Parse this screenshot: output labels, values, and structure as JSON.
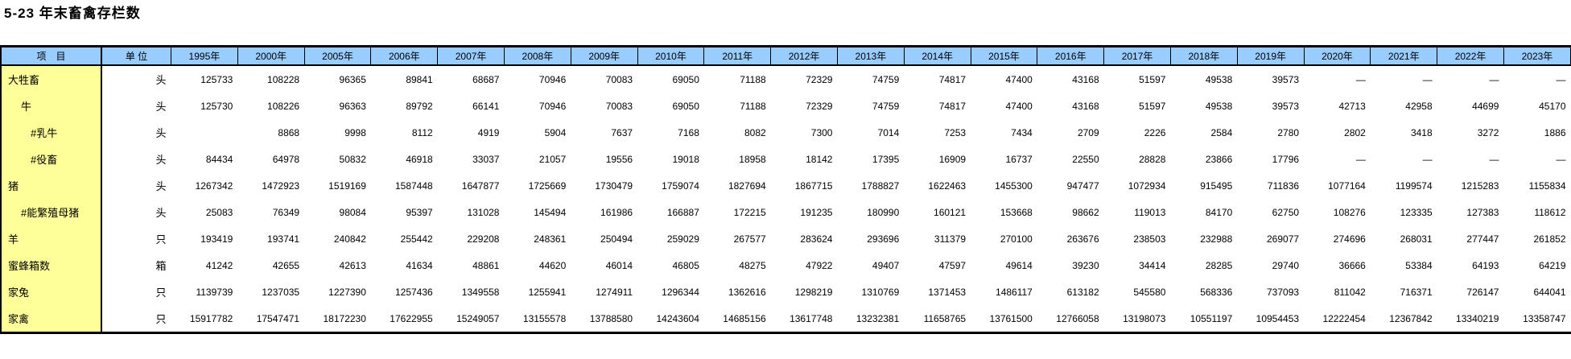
{
  "page": {
    "title": "5-23 年末畜禽存栏数"
  },
  "table": {
    "item_header": "项　目",
    "unit_header": "单 位",
    "missing_marker": "—",
    "years": [
      "1995年",
      "2000年",
      "2005年",
      "2006年",
      "2007年",
      "2008年",
      "2009年",
      "2010年",
      "2011年",
      "2012年",
      "2013年",
      "2014年",
      "2015年",
      "2016年",
      "2017年",
      "2018年",
      "2019年",
      "2020年",
      "2021年",
      "2022年",
      "2023年"
    ],
    "rows": [
      {
        "label": "大牲畜",
        "indent": 0,
        "unit": "头",
        "values": [
          "125733",
          "108228",
          "96365",
          "89841",
          "68687",
          "70946",
          "70083",
          "69050",
          "71188",
          "72329",
          "74759",
          "74817",
          "47400",
          "43168",
          "51597",
          "49538",
          "39573",
          "—",
          "—",
          "—",
          "—"
        ]
      },
      {
        "label": "牛",
        "indent": 1,
        "unit": "头",
        "values": [
          "125730",
          "108226",
          "96363",
          "89792",
          "66141",
          "70946",
          "70083",
          "69050",
          "71188",
          "72329",
          "74759",
          "74817",
          "47400",
          "43168",
          "51597",
          "49538",
          "39573",
          "42713",
          "42958",
          "44699",
          "45170"
        ]
      },
      {
        "label": "#乳牛",
        "indent": 2,
        "unit": "头",
        "values": [
          "",
          "8868",
          "9998",
          "8112",
          "4919",
          "5904",
          "7637",
          "7168",
          "8082",
          "7300",
          "7014",
          "7253",
          "7434",
          "2709",
          "2226",
          "2584",
          "2780",
          "2802",
          "3418",
          "3272",
          "1886"
        ]
      },
      {
        "label": "#役畜",
        "indent": 2,
        "unit": "头",
        "values": [
          "84434",
          "64978",
          "50832",
          "46918",
          "33037",
          "21057",
          "19556",
          "19018",
          "18958",
          "18142",
          "17395",
          "16909",
          "16737",
          "22550",
          "28828",
          "23866",
          "17796",
          "—",
          "—",
          "—",
          "—"
        ]
      },
      {
        "label": "猪",
        "indent": 0,
        "unit": "头",
        "values": [
          "1267342",
          "1472923",
          "1519169",
          "1587448",
          "1647877",
          "1725669",
          "1730479",
          "1759074",
          "1827694",
          "1867715",
          "1788827",
          "1622463",
          "1455300",
          "947477",
          "1072934",
          "915495",
          "711836",
          "1077164",
          "1199574",
          "1215283",
          "1155834"
        ]
      },
      {
        "label": "#能繁殖母猪",
        "indent": 1,
        "unit": "头",
        "values": [
          "25083",
          "76349",
          "98084",
          "95397",
          "131028",
          "145494",
          "161986",
          "166887",
          "172215",
          "191235",
          "180990",
          "160121",
          "153668",
          "98662",
          "119013",
          "84170",
          "62750",
          "108276",
          "123335",
          "127383",
          "118612"
        ]
      },
      {
        "label": "羊",
        "indent": 0,
        "unit": "只",
        "values": [
          "193419",
          "193741",
          "240842",
          "255442",
          "229208",
          "248361",
          "250494",
          "259029",
          "267577",
          "283624",
          "293696",
          "311379",
          "270100",
          "263676",
          "238503",
          "232988",
          "269077",
          "274696",
          "268031",
          "277447",
          "261852"
        ]
      },
      {
        "label": "蜜蜂箱数",
        "indent": 0,
        "unit": "箱",
        "values": [
          "41242",
          "42655",
          "42613",
          "41634",
          "48861",
          "44620",
          "46014",
          "46805",
          "48275",
          "47922",
          "49407",
          "47597",
          "49614",
          "39230",
          "34414",
          "28285",
          "29740",
          "36666",
          "53384",
          "64193",
          "64219"
        ]
      },
      {
        "label": "家兔",
        "indent": 0,
        "unit": "只",
        "values": [
          "1139739",
          "1237035",
          "1227390",
          "1257436",
          "1349558",
          "1255941",
          "1274911",
          "1296344",
          "1362616",
          "1298219",
          "1310769",
          "1371453",
          "1486117",
          "613182",
          "545580",
          "568336",
          "737093",
          "811042",
          "716371",
          "726147",
          "644041"
        ]
      },
      {
        "label": "家禽",
        "indent": 0,
        "unit": "只",
        "values": [
          "15917782",
          "17547471",
          "18172230",
          "17622955",
          "15249057",
          "13155578",
          "13788580",
          "14243604",
          "14685156",
          "13617748",
          "13232381",
          "11658765",
          "13761500",
          "12766058",
          "13198073",
          "10551197",
          "10954453",
          "12222454",
          "12367842",
          "13340219",
          "13358747"
        ]
      }
    ]
  },
  "colors": {
    "header_bg": "#99CCFF",
    "item_column_bg": "#FFFF99",
    "border": "#000000",
    "text": "#000000"
  }
}
